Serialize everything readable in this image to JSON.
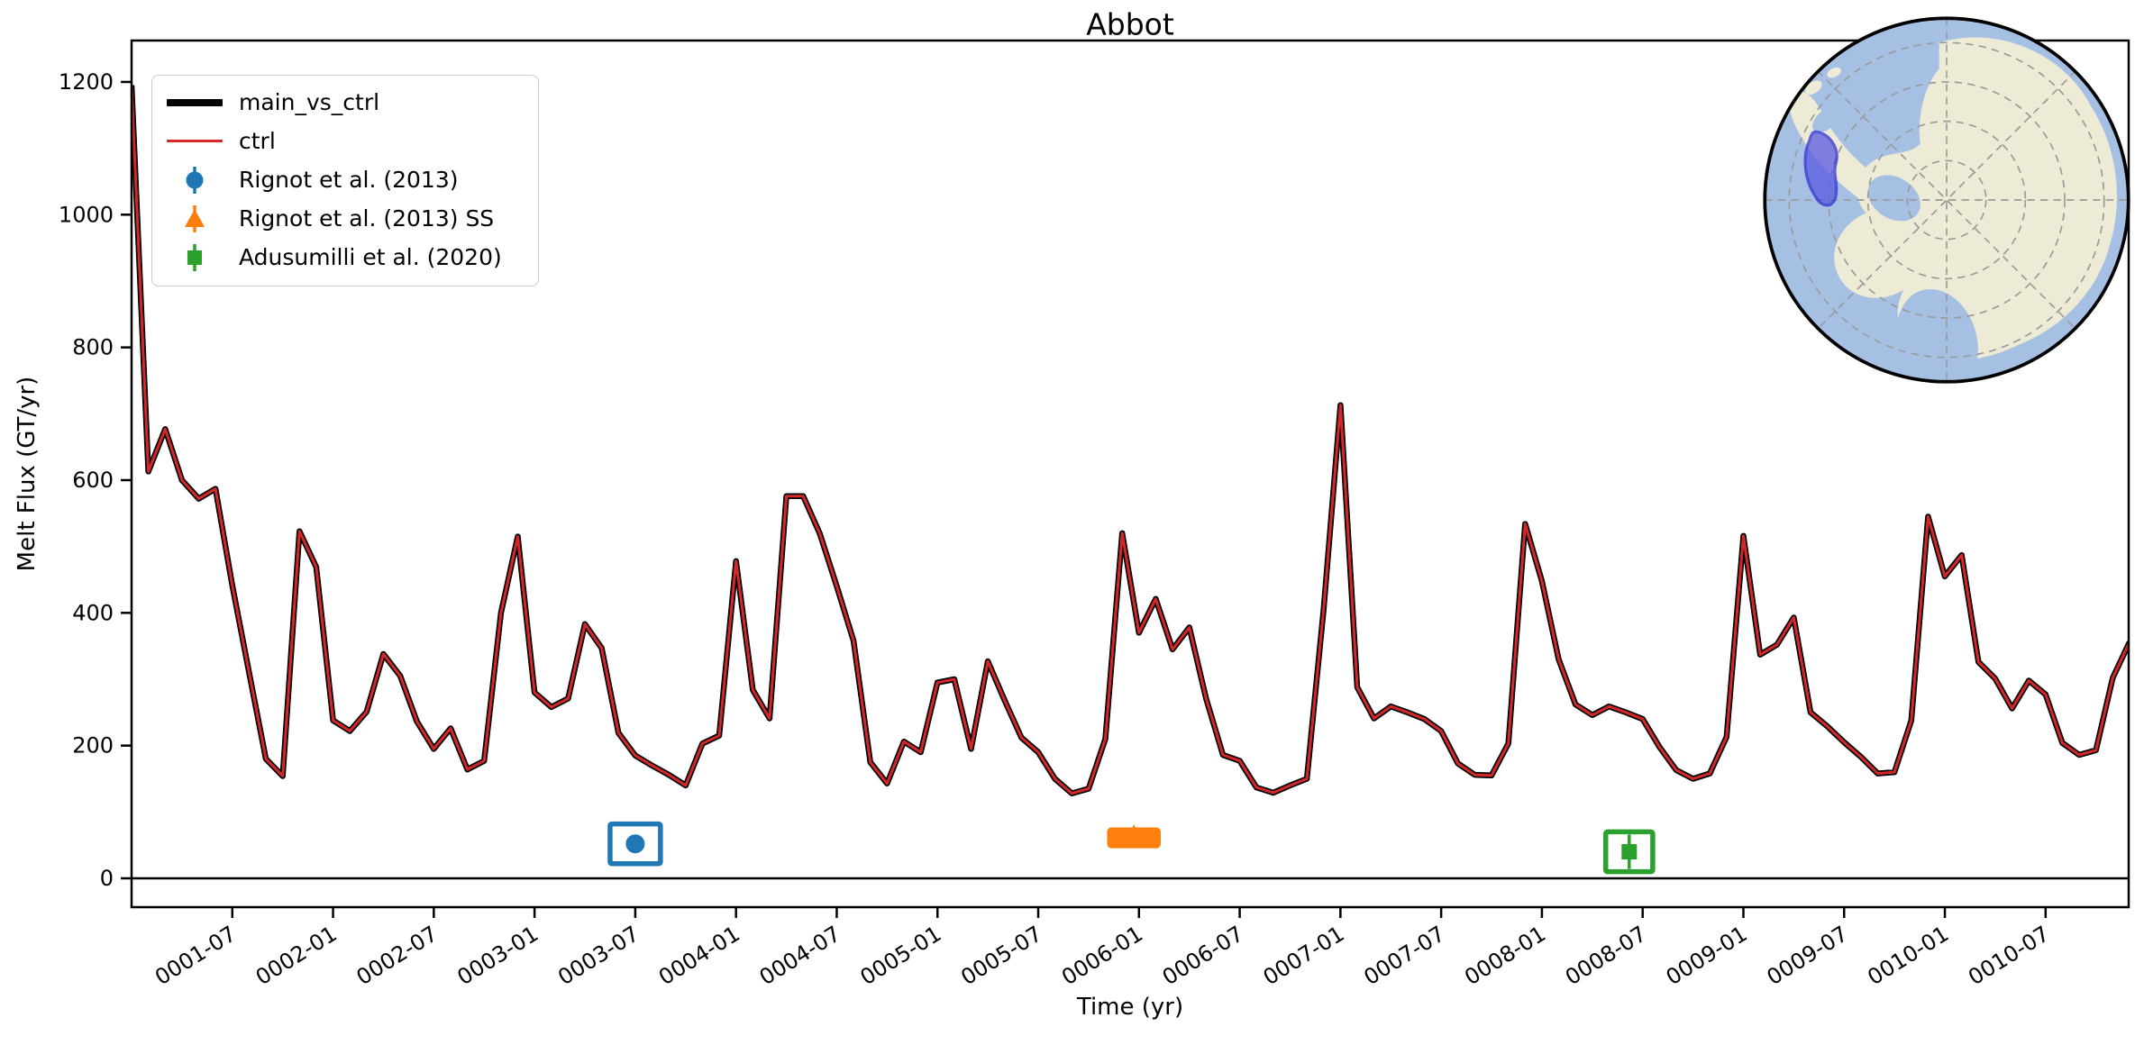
{
  "title": "Abbot",
  "colors": {
    "main": "#000000",
    "ctrl": "#d62728",
    "obs_blue": "#1f77b4",
    "obs_orange": "#ff7f0e",
    "obs_green": "#2ca02c",
    "axis": "#000000",
    "legend_border": "#cccccc",
    "map_ocean": "#a6c0e4",
    "map_land": "#edebd6",
    "map_graticule": "#9a9a9a",
    "map_highlight_fill": "#5a5ae0",
    "map_highlight_stroke": "#2f2fd0"
  },
  "legend": {
    "items": [
      {
        "label": "main_vs_ctrl"
      },
      {
        "label": "ctrl"
      },
      {
        "label": "Rignot et al. (2013)"
      },
      {
        "label": "Rignot et al. (2013) SS"
      },
      {
        "label": "Adusumilli et al. (2020)"
      }
    ]
  },
  "chart_data": {
    "type": "line",
    "title": "Abbot",
    "xlabel": "Time (yr)",
    "ylabel": "Melt Flux (GT/yr)",
    "x_start": "0001-01",
    "x_step": "1 month",
    "n_points": 120,
    "ylim": [
      -45,
      1262
    ],
    "yticks": [
      0,
      200,
      400,
      600,
      800,
      1000,
      1200
    ],
    "xtick_labels": [
      "0001-07",
      "0002-01",
      "0002-07",
      "0003-01",
      "0003-07",
      "0004-01",
      "0004-07",
      "0005-01",
      "0005-07",
      "0006-01",
      "0006-07",
      "0007-01",
      "0007-07",
      "0008-01",
      "0008-07",
      "0009-01",
      "0009-07",
      "0010-01",
      "0010-07"
    ],
    "grid": false,
    "legend_position": "upper left",
    "zero_line": true,
    "melt_flux_monthly": [
      1195,
      613,
      677,
      600,
      572,
      587,
      441,
      310,
      180,
      154,
      523,
      469,
      238,
      222,
      251,
      338,
      305,
      236,
      195,
      226,
      164,
      177,
      400,
      515,
      280,
      258,
      271,
      383,
      347,
      219,
      185,
      170,
      156,
      140,
      203,
      215,
      478,
      284,
      241,
      576,
      576,
      519,
      440,
      358,
      175,
      143,
      206,
      190,
      295,
      300,
      195,
      327,
      268,
      212,
      190,
      150,
      128,
      135,
      210,
      520,
      370,
      421,
      345,
      378,
      271,
      186,
      177,
      137,
      129,
      140,
      150,
      405,
      713,
      288,
      241,
      259,
      250,
      240,
      222,
      173,
      156,
      155,
      203,
      534,
      448,
      330,
      262,
      246,
      259,
      250,
      240,
      198,
      163,
      150,
      158,
      213,
      516,
      337,
      352,
      393,
      250,
      229,
      205,
      183,
      158,
      160,
      238,
      545,
      455,
      487,
      326,
      301,
      256,
      298,
      277,
      204,
      186,
      193,
      302,
      356
    ],
    "series": [
      {
        "name": "main_vs_ctrl",
        "color_key": "main",
        "linewidth": 6.5,
        "values_ref": "melt_flux_monthly"
      },
      {
        "name": "ctrl",
        "color_key": "ctrl",
        "linewidth": 3,
        "values_ref": "melt_flux_monthly"
      }
    ],
    "observations": [
      {
        "label": "Rignot et al. (2013)",
        "marker": "circle",
        "color_key": "obs_blue",
        "time": "0003-07",
        "t_months": 30.0,
        "value": 52,
        "value_err": 30,
        "time_err_months": 1.5,
        "box_fill": "white"
      },
      {
        "label": "Rignot et al. (2013) SS",
        "marker": "triangle",
        "color_key": "obs_orange",
        "time": "0005-12",
        "t_months": 59.7,
        "value": 61,
        "value_err": 12,
        "time_err_months": 1.45,
        "box_fill": "solid"
      },
      {
        "label": "Adusumilli et al. (2020)",
        "marker": "square",
        "color_key": "obs_green",
        "time": "0008-06",
        "t_months": 89.2,
        "value": 40,
        "value_err": 30,
        "time_err_months": 1.4,
        "box_fill": "white"
      }
    ],
    "inset_map": {
      "description": "Antarctica south-polar locator map",
      "highlighted_region": "Abbot"
    }
  }
}
